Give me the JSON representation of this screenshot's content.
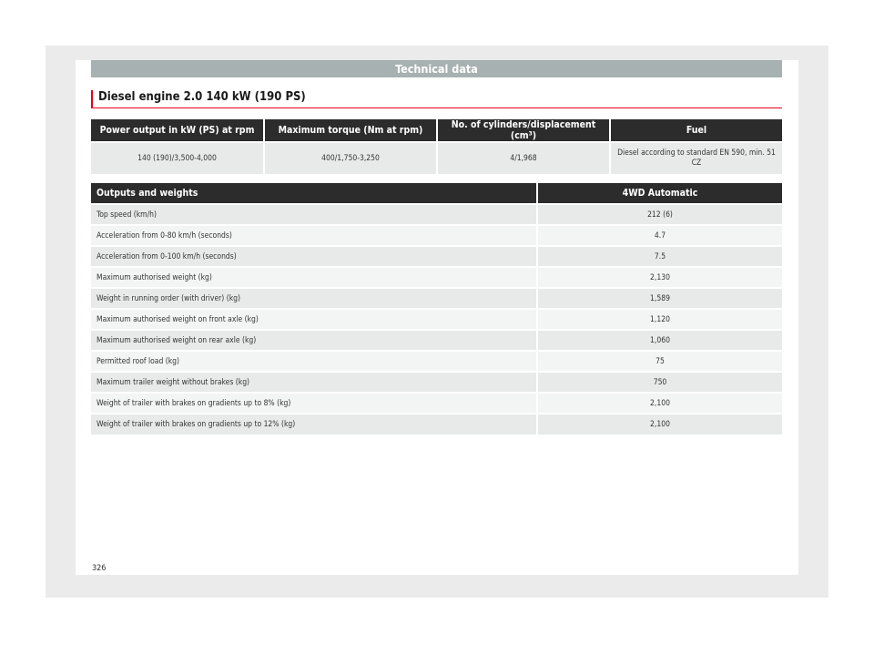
{
  "section_title": "Technical data",
  "heading": "Diesel engine 2.0 140 kW (190 PS)",
  "engine_table": {
    "headers": [
      "Power output in kW (PS) at rpm",
      "Maximum torque (Nm at rpm)",
      "No. of cylinders/displacement (cm³)",
      "Fuel"
    ],
    "row": [
      "140 (190)/3,500-4,000",
      "400/1,750-3,250",
      "4/1,968",
      "Diesel according to standard EN 590, min. 51 CZ"
    ]
  },
  "weights_table": {
    "header_label": "Outputs and weights",
    "header_value": "4WD Automatic",
    "rows": [
      {
        "label": "Top speed (km/h)",
        "value": "212 (6)"
      },
      {
        "label": "Acceleration from 0-80 km/h (seconds)",
        "value": "4.7"
      },
      {
        "label": "Acceleration from 0-100 km/h (seconds)",
        "value": "7.5"
      },
      {
        "label": "Maximum authorised weight (kg)",
        "value": "2,130"
      },
      {
        "label": "Weight in running order (with driver) (kg)",
        "value": "1,589"
      },
      {
        "label": "Maximum authorised weight on front axle (kg)",
        "value": "1,120"
      },
      {
        "label": "Maximum authorised weight on rear axle (kg)",
        "value": "1,060"
      },
      {
        "label": "Permitted roof load (kg)",
        "value": "75"
      },
      {
        "label": "Maximum trailer weight without brakes (kg)",
        "value": "750"
      },
      {
        "label": "Weight of trailer with brakes on gradients up to 8% (kg)",
        "value": "2,100"
      },
      {
        "label": "Weight of trailer with brakes on gradients up to 12% (kg)",
        "value": "2,100"
      }
    ]
  },
  "page_number": "326"
}
